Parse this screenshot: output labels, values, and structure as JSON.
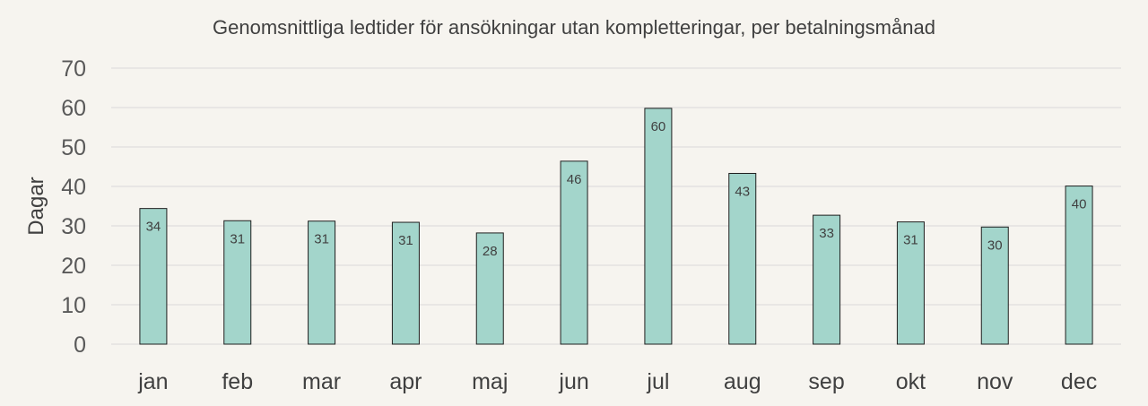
{
  "chart_data": {
    "type": "bar",
    "title": "Genomsnittliga ledtider för ansökningar utan kompletteringar, per betalningsmånad",
    "xlabel": "",
    "ylabel": "Dagar",
    "ylim": [
      0,
      70
    ],
    "yticks": [
      0,
      10,
      20,
      30,
      40,
      50,
      60,
      70
    ],
    "grid": true,
    "legend": "none",
    "bar_color": "#a3d5cb",
    "categories": [
      "jan",
      "feb",
      "mar",
      "apr",
      "maj",
      "jun",
      "jul",
      "aug",
      "sep",
      "okt",
      "nov",
      "dec"
    ],
    "values": [
      34.4,
      31.3,
      31.2,
      30.9,
      28.2,
      46.4,
      59.8,
      43.3,
      32.7,
      31.0,
      29.7,
      40.1
    ],
    "data_labels": [
      "34",
      "31",
      "31",
      "31",
      "28",
      "46",
      "60",
      "43",
      "33",
      "31",
      "30",
      "40"
    ]
  }
}
